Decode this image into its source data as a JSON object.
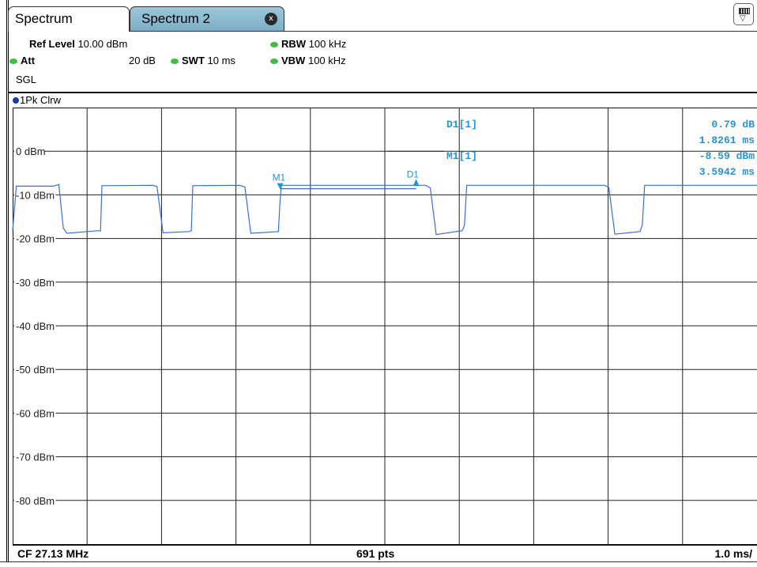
{
  "tabs": [
    {
      "label": "Spectrum",
      "active": true
    },
    {
      "label": "Spectrum 2",
      "active": false,
      "close_icon": "x-icon"
    }
  ],
  "settings": {
    "ref_level_label": "Ref Level",
    "ref_level_value": "10.00 dBm",
    "att_label": "Att",
    "att_value": "20 dB",
    "swt_label": "SWT",
    "swt_value": "10 ms",
    "rbw_label": "RBW",
    "rbw_value": "100 kHz",
    "vbw_label": "VBW",
    "vbw_value": "100 kHz",
    "mode": "SGL"
  },
  "trace": {
    "label": "1Pk Clrw",
    "color": "#3a6fd8"
  },
  "y_axis": {
    "ticks": [
      {
        "label": "0 dBm",
        "value": 0
      },
      {
        "label": "-10 dBm",
        "value": -10
      },
      {
        "label": "-20 dBm",
        "value": -20
      },
      {
        "label": "-30 dBm",
        "value": -30
      },
      {
        "label": "-40 dBm",
        "value": -40
      },
      {
        "label": "-50 dBm",
        "value": -50
      },
      {
        "label": "-60 dBm",
        "value": -60
      },
      {
        "label": "-70 dBm",
        "value": -70
      },
      {
        "label": "-80 dBm",
        "value": -80
      }
    ]
  },
  "markers": {
    "M1": {
      "label": "M1",
      "x_ms": 3.5942,
      "y_dbm": -8.59
    },
    "D1": {
      "label": "D1",
      "x_ms": 5.4203,
      "y_dbm": -7.8
    }
  },
  "readout": {
    "d1_label": "D1[1]",
    "d1_level": "0.79 dB",
    "d1_time": "1.8261 ms",
    "m1_label": "M1[1]",
    "m1_level": "-8.59 dBm",
    "m1_time": "3.5942 ms"
  },
  "status": {
    "center_freq": "CF 27.13 MHz",
    "points": "691 pts",
    "sweep_per_div": "1.0 ms/"
  },
  "chart_data": {
    "type": "line",
    "x_unit": "ms",
    "xlim": [
      0,
      10
    ],
    "ylim": [
      -90,
      10
    ],
    "y_unit": "dBm",
    "grid": true,
    "series": [
      {
        "name": "1Pk Clrw",
        "x": [
          0.0,
          0.05,
          0.55,
          0.62,
          0.68,
          0.73,
          1.15,
          1.18,
          1.2,
          1.88,
          1.94,
          2.02,
          2.37,
          2.4,
          2.42,
          3.05,
          3.12,
          3.2,
          3.57,
          3.59,
          3.61,
          5.55,
          5.61,
          5.69,
          6.04,
          6.07,
          6.1,
          7.95,
          8.01,
          8.09,
          8.43,
          8.46,
          8.49,
          10.0
        ],
        "y": [
          -18.2,
          -8.0,
          -8.0,
          -7.6,
          -17.6,
          -18.8,
          -18.2,
          -18.3,
          -7.9,
          -7.8,
          -8.1,
          -18.7,
          -18.4,
          -18.2,
          -7.9,
          -7.8,
          -8.2,
          -18.8,
          -18.4,
          -12.0,
          -7.8,
          -7.8,
          -8.4,
          -19.1,
          -18.2,
          -17.0,
          -7.8,
          -7.8,
          -8.3,
          -19.0,
          -18.4,
          -16.8,
          -7.8,
          -7.8
        ]
      }
    ]
  }
}
